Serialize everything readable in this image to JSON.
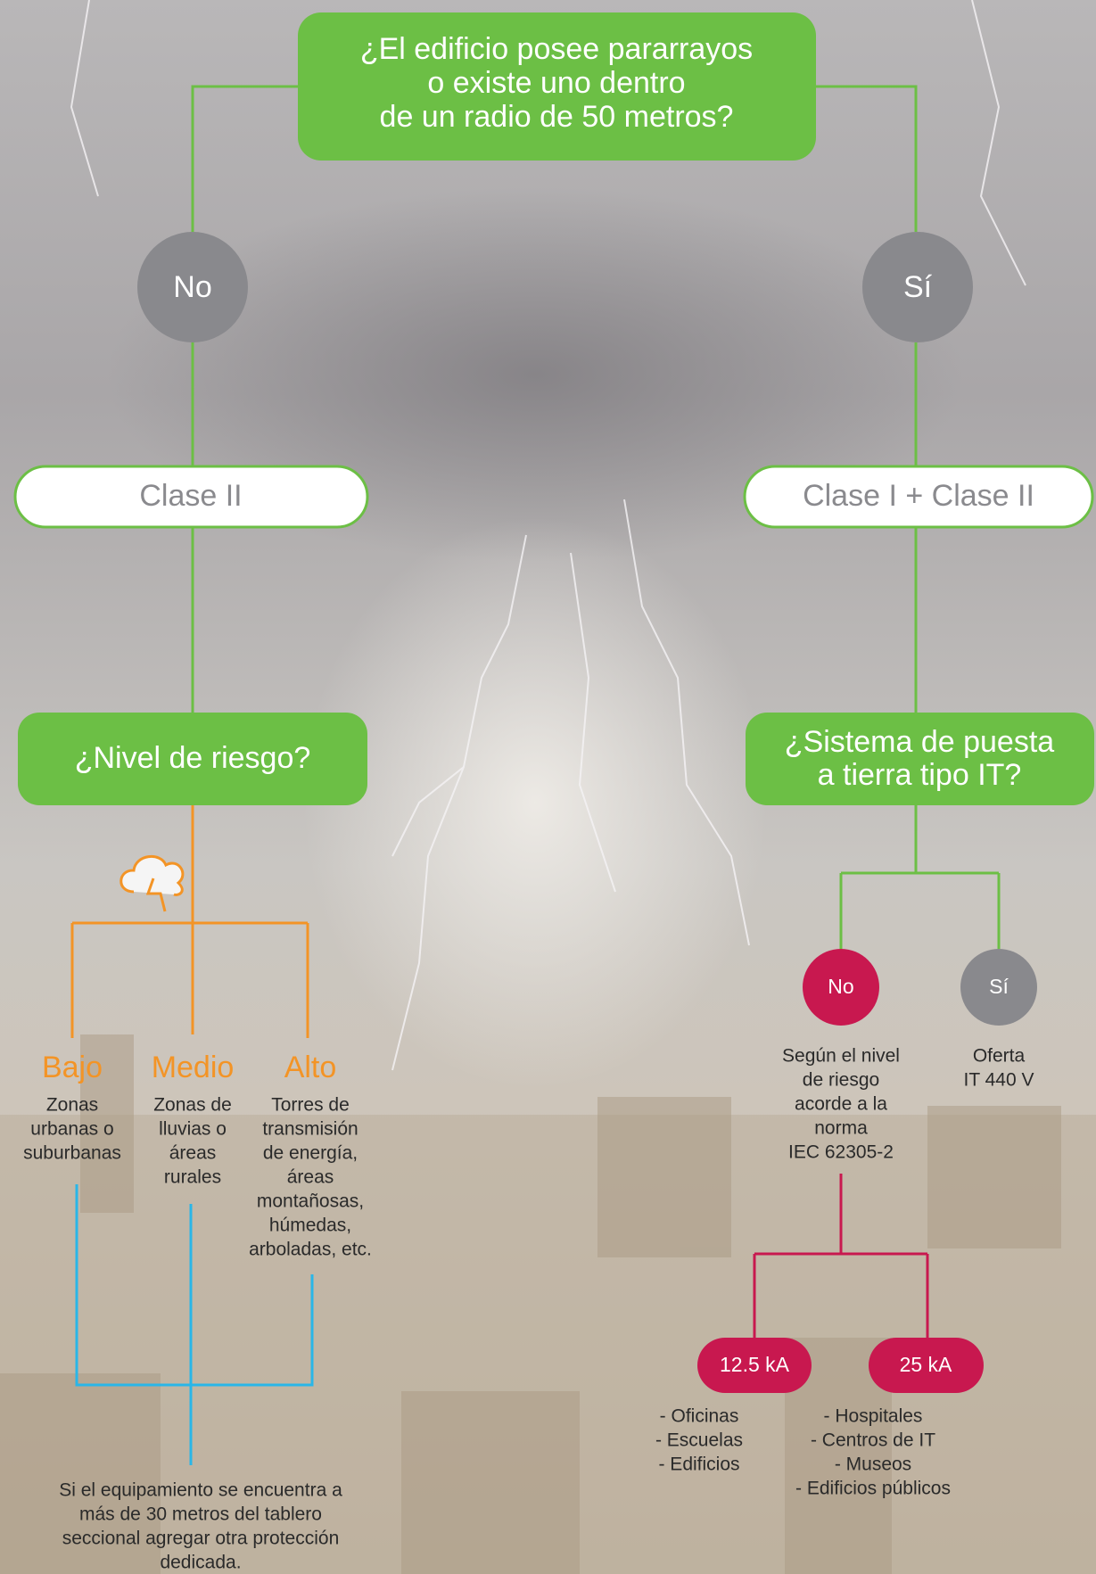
{
  "question": {
    "lines": [
      "¿El edificio posee pararrayos",
      "o existe uno dentro",
      "de un radio de 50 metros?"
    ]
  },
  "answers": {
    "no": "No",
    "si": "Sí"
  },
  "left": {
    "class": "Clase II",
    "question": "¿Nivel de riesgo?",
    "levels": [
      {
        "name": "Bajo",
        "description": [
          "Zonas",
          "urbanas o",
          "suburbanas"
        ]
      },
      {
        "name": "Medio",
        "description": [
          "Zonas de",
          "lluvias o",
          "áreas",
          "rurales"
        ]
      },
      {
        "name": "Alto",
        "description": [
          "Torres de",
          "transmisión",
          "de energía,",
          "áreas",
          "montañosas,",
          "húmedas,",
          "arboladas, etc."
        ]
      }
    ],
    "note": [
      "Si el equipamiento se encuentra a",
      "más de 30 metros del tablero",
      "seccional agregar otra protección",
      "dedicada."
    ]
  },
  "right": {
    "class": "Clase I + Clase II",
    "question": [
      "¿Sistema de puesta",
      "a tierra tipo IT?"
    ],
    "answers": [
      {
        "label": "No",
        "description": [
          "Según el nivel",
          "de riesgo",
          "acorde a la",
          "norma",
          "IEC 62305-2"
        ]
      },
      {
        "label": "Sí",
        "description": [
          "Oferta",
          "IT 440 V"
        ]
      }
    ],
    "options": [
      {
        "label": "12.5 kA",
        "items": [
          "- Oficinas",
          "- Escuelas",
          "- Edificios"
        ]
      },
      {
        "label": "25 kA",
        "items": [
          "- Hospitales",
          "- Centros de IT",
          "- Museos",
          "- Edificios públicos"
        ]
      }
    ]
  }
}
